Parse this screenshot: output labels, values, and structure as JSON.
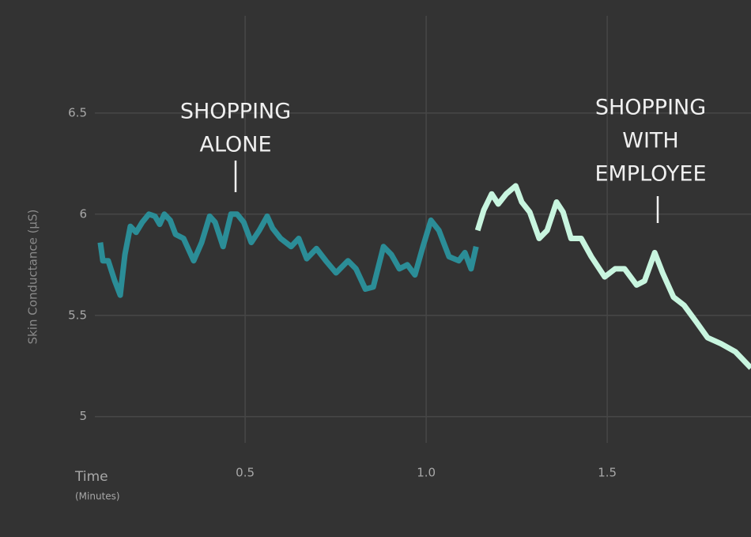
{
  "chart_data": {
    "type": "line",
    "y_label": "Skin Conductance (µS)",
    "x_label": "Time",
    "x_sublabel": "(Minutes)",
    "annotations": [
      [
        "SHOPPING",
        "ALONE"
      ],
      [
        "SHOPPING",
        "WITH",
        "EMPLOYEE"
      ]
    ],
    "xlim": [
      0.085,
      1.897
    ],
    "ylim": [
      4.87,
      6.98
    ],
    "xticks": [
      0.5,
      {
        "value": 1,
        "label": "1.0"
      },
      1.5
    ],
    "yticks": [
      5,
      5.5,
      6,
      6.5
    ],
    "grid": true,
    "series": [
      {
        "color": "#2b8d97",
        "x": [
          0.1,
          0.107,
          0.122,
          0.14,
          0.155,
          0.168,
          0.183,
          0.199,
          0.216,
          0.234,
          0.251,
          0.264,
          0.277,
          0.293,
          0.308,
          0.33,
          0.358,
          0.38,
          0.402,
          0.417,
          0.439,
          0.461,
          0.478,
          0.496,
          0.517,
          0.539,
          0.561,
          0.576,
          0.598,
          0.627,
          0.648,
          0.67,
          0.697,
          0.723,
          0.751,
          0.784,
          0.806,
          0.832,
          0.854,
          0.882,
          0.904,
          0.926,
          0.948,
          0.969,
          0.991,
          1.013,
          1.035,
          1.063,
          1.09,
          1.107,
          1.124,
          1.138
        ],
        "values": [
          5.86,
          5.77,
          5.77,
          5.67,
          5.6,
          5.8,
          5.94,
          5.91,
          5.96,
          6.0,
          5.99,
          5.95,
          6.0,
          5.97,
          5.9,
          5.88,
          5.77,
          5.86,
          5.99,
          5.96,
          5.84,
          6.0,
          6.0,
          5.96,
          5.86,
          5.92,
          5.99,
          5.93,
          5.88,
          5.84,
          5.88,
          5.78,
          5.83,
          5.77,
          5.71,
          5.77,
          5.73,
          5.63,
          5.64,
          5.84,
          5.8,
          5.73,
          5.75,
          5.7,
          5.84,
          5.97,
          5.92,
          5.79,
          5.77,
          5.81,
          5.73,
          5.84
        ]
      },
      {
        "color": "#c8f5df",
        "x": [
          1.142,
          1.159,
          1.181,
          1.199,
          1.221,
          1.247,
          1.264,
          1.286,
          1.312,
          1.334,
          1.36,
          1.378,
          1.4,
          1.428,
          1.456,
          1.493,
          1.522,
          1.548,
          1.581,
          1.603,
          1.631,
          1.653,
          1.683,
          1.712,
          1.745,
          1.777,
          1.814,
          1.854,
          1.897
        ],
        "values": [
          5.92,
          6.02,
          6.1,
          6.05,
          6.1,
          6.14,
          6.06,
          6.01,
          5.88,
          5.92,
          6.06,
          6.01,
          5.88,
          5.88,
          5.79,
          5.69,
          5.73,
          5.73,
          5.65,
          5.67,
          5.81,
          5.71,
          5.59,
          5.55,
          5.47,
          5.39,
          5.36,
          5.32,
          5.24
        ]
      }
    ]
  }
}
